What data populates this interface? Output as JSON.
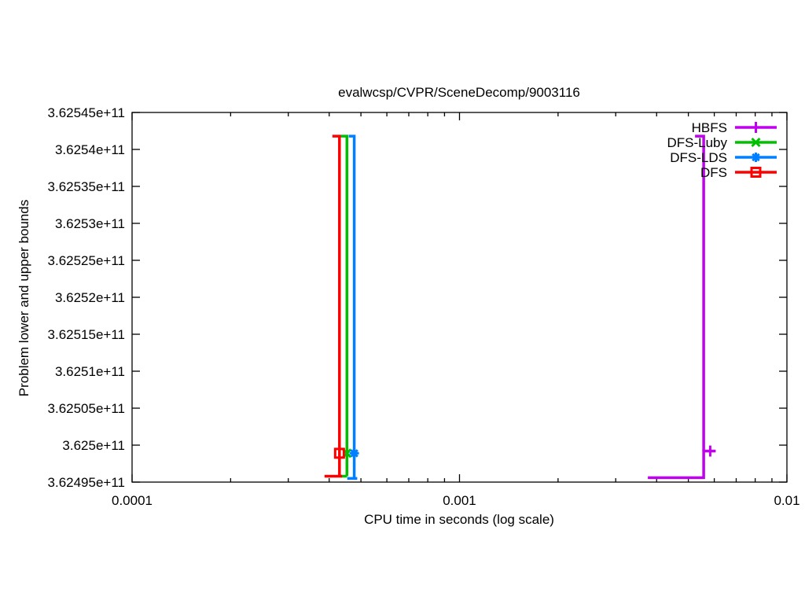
{
  "chart_data": {
    "type": "line",
    "title": "evalwcsp/CVPR/SceneDecomp/9003116",
    "xlabel": "CPU time in seconds (log scale)",
    "ylabel": "Problem lower and upper bounds",
    "x_scale": "log",
    "grid": false,
    "legend_position": "top-right",
    "xlim": [
      0.0001,
      0.01
    ],
    "ylim": [
      362495000000,
      362545000000
    ],
    "x_ticks": [
      {
        "value": 0.0001,
        "label": "0.0001"
      },
      {
        "value": 0.001,
        "label": "0.001"
      },
      {
        "value": 0.01,
        "label": "0.01"
      }
    ],
    "y_ticks": [
      {
        "value": 362545000000,
        "label": "3.62545e+11"
      },
      {
        "value": 362540000000,
        "label": "3.6254e+11"
      },
      {
        "value": 362535000000,
        "label": "3.62535e+11"
      },
      {
        "value": 362530000000,
        "label": "3.6253e+11"
      },
      {
        "value": 362525000000,
        "label": "3.62525e+11"
      },
      {
        "value": 362520000000,
        "label": "3.6252e+11"
      },
      {
        "value": 362515000000,
        "label": "3.62515e+11"
      },
      {
        "value": 362510000000,
        "label": "3.6251e+11"
      },
      {
        "value": 362505000000,
        "label": "3.62505e+11"
      },
      {
        "value": 362500000000,
        "label": "3.625e+11"
      },
      {
        "value": 362495000000,
        "label": "3.62495e+11"
      }
    ],
    "series": [
      {
        "name": "HBFS",
        "color": "#C000EE",
        "marker": "plus",
        "segments": [
          [
            [
              0.00376,
              362495600000
            ],
            [
              0.00557,
              362495600000
            ],
            [
              0.00557,
              362499200000
            ],
            [
              0.00605,
              362499200000
            ]
          ],
          [
            [
              0.00524,
              362541800000
            ],
            [
              0.00557,
              362541800000
            ],
            [
              0.00557,
              362499200000
            ]
          ]
        ],
        "marker_at": [
          0.00583,
          362499200000
        ]
      },
      {
        "name": "DFS-Luby",
        "color": "#00C000",
        "marker": "cross",
        "segments": [
          [
            [
              0.000434,
              362495800000
            ],
            [
              0.000453,
              362495800000
            ]
          ],
          [
            [
              0.000434,
              362541800000
            ],
            [
              0.000453,
              362541800000
            ],
            [
              0.000453,
              362495800000
            ]
          ]
        ],
        "marker_at": [
          0.000453,
          362498900000
        ]
      },
      {
        "name": "DFS-LDS",
        "color": "#0080FF",
        "marker": "asterisk",
        "segments": [
          [
            [
              0.000454,
              362495500000
            ],
            [
              0.000487,
              362495500000
            ]
          ],
          [
            [
              0.000459,
              362541800000
            ],
            [
              0.000477,
              362541800000
            ],
            [
              0.000477,
              362495500000
            ]
          ]
        ],
        "marker_at": [
          0.000477,
          362498900000
        ]
      },
      {
        "name": "DFS",
        "color": "#FF0000",
        "marker": "square-open",
        "segments": [
          [
            [
              0.000387,
              362495800000
            ],
            [
              0.000438,
              362495800000
            ]
          ],
          [
            [
              0.000409,
              362541800000
            ],
            [
              0.00043,
              362541800000
            ],
            [
              0.00043,
              362495800000
            ]
          ]
        ],
        "marker_at": [
          0.00043,
          362498900000
        ]
      }
    ]
  }
}
